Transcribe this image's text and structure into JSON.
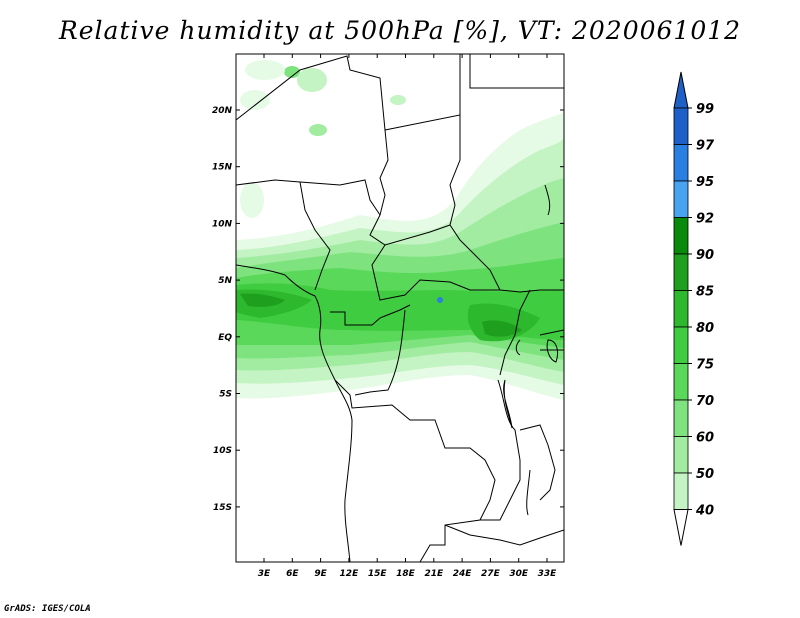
{
  "title": "Relative humidity at 500hPa [%], VT: 2020061012",
  "credit": "GrADS: IGES/COLA",
  "map": {
    "lat_labels": [
      "20N",
      "15N",
      "10N",
      "5N",
      "EQ",
      "5S",
      "10S",
      "15S"
    ],
    "lon_labels": [
      "3E",
      "6E",
      "9E",
      "12E",
      "15E",
      "18E",
      "21E",
      "24E",
      "27E",
      "30E",
      "33E"
    ]
  },
  "colorbar": {
    "labels": [
      "99",
      "97",
      "95",
      "92",
      "90",
      "85",
      "80",
      "75",
      "70",
      "60",
      "50",
      "40"
    ],
    "colors": [
      "#1e5fc8",
      "#2a7fe0",
      "#4aa3f0",
      "#0a8a0a",
      "#1ea01e",
      "#2eb82e",
      "#40cc40",
      "#5ad85a",
      "#7ee37e",
      "#a2eca2",
      "#c4f3c4",
      "#e6fbe6"
    ],
    "below_color": "#ffffff",
    "top_arrow_color": "#1e5fc8"
  }
}
